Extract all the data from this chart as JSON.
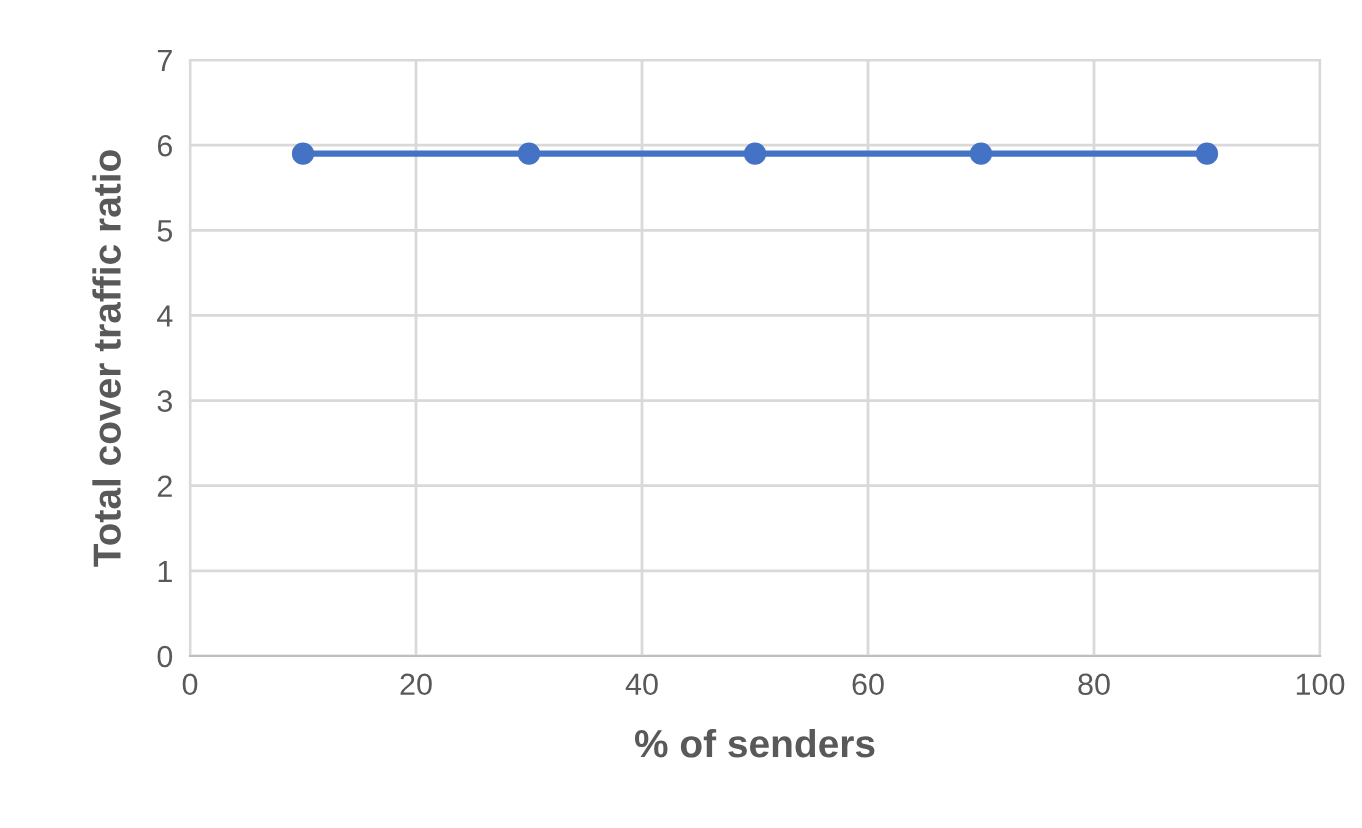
{
  "chart_data": {
    "type": "line",
    "xlabel": "% of senders",
    "ylabel": "Total cover traffic ratio",
    "x": [
      10,
      30,
      50,
      70,
      90
    ],
    "series": [
      {
        "color": "#4472c4",
        "values": [
          5.9,
          5.9,
          5.9,
          5.9,
          5.9
        ]
      }
    ],
    "xlim": [
      0,
      100
    ],
    "xticks": [
      0,
      20,
      40,
      60,
      80,
      100
    ],
    "ylim": [
      0,
      7
    ],
    "yticks": [
      0,
      1,
      2,
      3,
      4,
      5,
      6,
      7
    ],
    "grid": true,
    "marker": "circle",
    "line_style": "solid",
    "legend": false
  }
}
